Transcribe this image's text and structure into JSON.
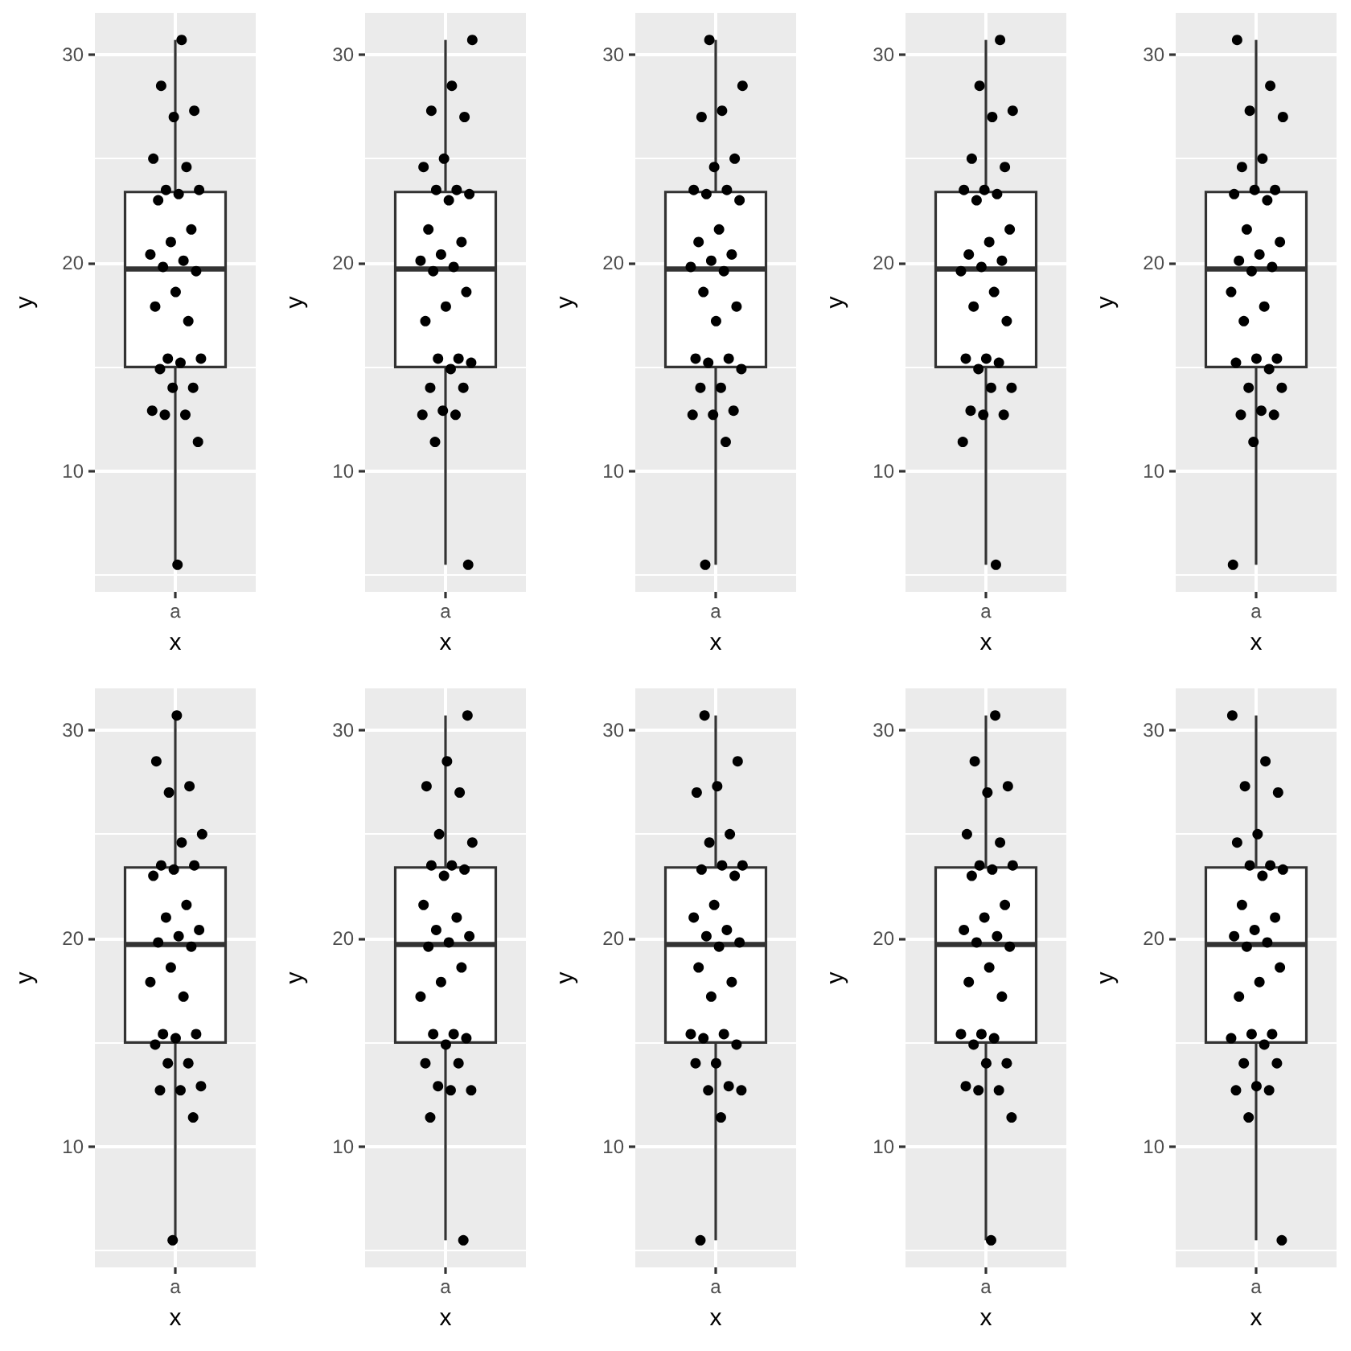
{
  "chart_data": [
    {
      "type": "box",
      "xlabel": "x",
      "ylabel": "y",
      "categories": [
        "a"
      ],
      "ylim": [
        4.2,
        32.0
      ],
      "yticks": [
        {
          "value": 5,
          "label": null
        },
        10,
        {
          "value": 15,
          "label": null
        },
        20,
        {
          "value": 25,
          "label": null
        },
        30
      ],
      "grid": true,
      "marker": "circle",
      "series": [
        {
          "type": "box",
          "color": "#333333",
          "boxes": [
            {
              "low": 5.5,
              "q1": 15.0,
              "median": 19.7,
              "q3": 23.4,
              "high": 30.7
            }
          ]
        },
        {
          "type": "scatter",
          "color": "#000000",
          "x": [
            "a",
            "a",
            "a",
            "a",
            "a",
            "a",
            "a",
            "a",
            "a",
            "a",
            "a",
            "a",
            "a",
            "a",
            "a",
            "a",
            "a",
            "a",
            "a",
            "a",
            "a",
            "a",
            "a",
            "a",
            "a",
            "a",
            "a",
            "a",
            "a",
            "a"
          ],
          "values": [
            30.7,
            28.5,
            27.3,
            27.0,
            25.0,
            24.6,
            23.5,
            23.5,
            23.3,
            23.0,
            21.6,
            21.0,
            20.4,
            20.1,
            19.8,
            19.6,
            18.6,
            17.9,
            17.2,
            15.4,
            15.4,
            15.2,
            14.9,
            14.0,
            14.0,
            12.9,
            12.7,
            12.7,
            11.4,
            5.5
          ]
        }
      ]
    },
    {
      "type": "box",
      "xlabel": "x",
      "ylabel": "y",
      "categories": [
        "a"
      ],
      "ylim": [
        4.2,
        32.0
      ],
      "yticks": [
        {
          "value": 5,
          "label": null
        },
        10,
        {
          "value": 15,
          "label": null
        },
        20,
        {
          "value": 25,
          "label": null
        },
        30
      ],
      "grid": true,
      "marker": "circle",
      "series": [
        {
          "type": "box",
          "color": "#333333",
          "boxes": [
            {
              "low": 5.5,
              "q1": 15.0,
              "median": 19.7,
              "q3": 23.4,
              "high": 30.7
            }
          ]
        },
        {
          "type": "scatter",
          "color": "#000000",
          "x": [
            "a",
            "a",
            "a",
            "a",
            "a",
            "a",
            "a",
            "a",
            "a",
            "a",
            "a",
            "a",
            "a",
            "a",
            "a",
            "a",
            "a",
            "a",
            "a",
            "a",
            "a",
            "a",
            "a",
            "a",
            "a",
            "a",
            "a",
            "a",
            "a",
            "a"
          ],
          "values": [
            30.7,
            28.5,
            27.3,
            27.0,
            25.0,
            24.6,
            23.5,
            23.5,
            23.3,
            23.0,
            21.6,
            21.0,
            20.4,
            20.1,
            19.8,
            19.6,
            18.6,
            17.9,
            17.2,
            15.4,
            15.4,
            15.2,
            14.9,
            14.0,
            14.0,
            12.9,
            12.7,
            12.7,
            11.4,
            5.5
          ]
        }
      ]
    },
    {
      "type": "box",
      "xlabel": "x",
      "ylabel": "y",
      "categories": [
        "a"
      ],
      "ylim": [
        4.2,
        32.0
      ],
      "yticks": [
        {
          "value": 5,
          "label": null
        },
        10,
        {
          "value": 15,
          "label": null
        },
        20,
        {
          "value": 25,
          "label": null
        },
        30
      ],
      "grid": true,
      "marker": "circle",
      "series": [
        {
          "type": "box",
          "color": "#333333",
          "boxes": [
            {
              "low": 5.5,
              "q1": 15.0,
              "median": 19.7,
              "q3": 23.4,
              "high": 30.7
            }
          ]
        },
        {
          "type": "scatter",
          "color": "#000000",
          "x": [
            "a",
            "a",
            "a",
            "a",
            "a",
            "a",
            "a",
            "a",
            "a",
            "a",
            "a",
            "a",
            "a",
            "a",
            "a",
            "a",
            "a",
            "a",
            "a",
            "a",
            "a",
            "a",
            "a",
            "a",
            "a",
            "a",
            "a",
            "a",
            "a",
            "a"
          ],
          "values": [
            30.7,
            28.5,
            27.3,
            27.0,
            25.0,
            24.6,
            23.5,
            23.5,
            23.3,
            23.0,
            21.6,
            21.0,
            20.4,
            20.1,
            19.8,
            19.6,
            18.6,
            17.9,
            17.2,
            15.4,
            15.4,
            15.2,
            14.9,
            14.0,
            14.0,
            12.9,
            12.7,
            12.7,
            11.4,
            5.5
          ]
        }
      ]
    },
    {
      "type": "box",
      "xlabel": "x",
      "ylabel": "y",
      "categories": [
        "a"
      ],
      "ylim": [
        4.2,
        32.0
      ],
      "yticks": [
        {
          "value": 5,
          "label": null
        },
        10,
        {
          "value": 15,
          "label": null
        },
        20,
        {
          "value": 25,
          "label": null
        },
        30
      ],
      "grid": true,
      "marker": "circle",
      "series": [
        {
          "type": "box",
          "color": "#333333",
          "boxes": [
            {
              "low": 5.5,
              "q1": 15.0,
              "median": 19.7,
              "q3": 23.4,
              "high": 30.7
            }
          ]
        },
        {
          "type": "scatter",
          "color": "#000000",
          "x": [
            "a",
            "a",
            "a",
            "a",
            "a",
            "a",
            "a",
            "a",
            "a",
            "a",
            "a",
            "a",
            "a",
            "a",
            "a",
            "a",
            "a",
            "a",
            "a",
            "a",
            "a",
            "a",
            "a",
            "a",
            "a",
            "a",
            "a",
            "a",
            "a",
            "a"
          ],
          "values": [
            30.7,
            28.5,
            27.3,
            27.0,
            25.0,
            24.6,
            23.5,
            23.5,
            23.3,
            23.0,
            21.6,
            21.0,
            20.4,
            20.1,
            19.8,
            19.6,
            18.6,
            17.9,
            17.2,
            15.4,
            15.4,
            15.2,
            14.9,
            14.0,
            14.0,
            12.9,
            12.7,
            12.7,
            11.4,
            5.5
          ]
        }
      ]
    },
    {
      "type": "box",
      "xlabel": "x",
      "ylabel": "y",
      "categories": [
        "a"
      ],
      "ylim": [
        4.2,
        32.0
      ],
      "yticks": [
        {
          "value": 5,
          "label": null
        },
        10,
        {
          "value": 15,
          "label": null
        },
        20,
        {
          "value": 25,
          "label": null
        },
        30
      ],
      "grid": true,
      "marker": "circle",
      "series": [
        {
          "type": "box",
          "color": "#333333",
          "boxes": [
            {
              "low": 5.5,
              "q1": 15.0,
              "median": 19.7,
              "q3": 23.4,
              "high": 30.7
            }
          ]
        },
        {
          "type": "scatter",
          "color": "#000000",
          "x": [
            "a",
            "a",
            "a",
            "a",
            "a",
            "a",
            "a",
            "a",
            "a",
            "a",
            "a",
            "a",
            "a",
            "a",
            "a",
            "a",
            "a",
            "a",
            "a",
            "a",
            "a",
            "a",
            "a",
            "a",
            "a",
            "a",
            "a",
            "a",
            "a",
            "a"
          ],
          "values": [
            30.7,
            28.5,
            27.3,
            27.0,
            25.0,
            24.6,
            23.5,
            23.5,
            23.3,
            23.0,
            21.6,
            21.0,
            20.4,
            20.1,
            19.8,
            19.6,
            18.6,
            17.9,
            17.2,
            15.4,
            15.4,
            15.2,
            14.9,
            14.0,
            14.0,
            12.9,
            12.7,
            12.7,
            11.4,
            5.5
          ]
        }
      ]
    },
    {
      "type": "box",
      "xlabel": "x",
      "ylabel": "y",
      "categories": [
        "a"
      ],
      "ylim": [
        4.2,
        32.0
      ],
      "yticks": [
        {
          "value": 5,
          "label": null
        },
        10,
        {
          "value": 15,
          "label": null
        },
        20,
        {
          "value": 25,
          "label": null
        },
        30
      ],
      "grid": true,
      "marker": "circle",
      "series": [
        {
          "type": "box",
          "color": "#333333",
          "boxes": [
            {
              "low": 5.5,
              "q1": 15.0,
              "median": 19.7,
              "q3": 23.4,
              "high": 30.7
            }
          ]
        },
        {
          "type": "scatter",
          "color": "#000000",
          "x": [
            "a",
            "a",
            "a",
            "a",
            "a",
            "a",
            "a",
            "a",
            "a",
            "a",
            "a",
            "a",
            "a",
            "a",
            "a",
            "a",
            "a",
            "a",
            "a",
            "a",
            "a",
            "a",
            "a",
            "a",
            "a",
            "a",
            "a",
            "a",
            "a",
            "a"
          ],
          "values": [
            30.7,
            28.5,
            27.3,
            27.0,
            25.0,
            24.6,
            23.5,
            23.5,
            23.3,
            23.0,
            21.6,
            21.0,
            20.4,
            20.1,
            19.8,
            19.6,
            18.6,
            17.9,
            17.2,
            15.4,
            15.4,
            15.2,
            14.9,
            14.0,
            14.0,
            12.9,
            12.7,
            12.7,
            11.4,
            5.5
          ]
        }
      ]
    },
    {
      "type": "box",
      "xlabel": "x",
      "ylabel": "y",
      "categories": [
        "a"
      ],
      "ylim": [
        4.2,
        32.0
      ],
      "yticks": [
        {
          "value": 5,
          "label": null
        },
        10,
        {
          "value": 15,
          "label": null
        },
        20,
        {
          "value": 25,
          "label": null
        },
        30
      ],
      "grid": true,
      "marker": "circle",
      "series": [
        {
          "type": "box",
          "color": "#333333",
          "boxes": [
            {
              "low": 5.5,
              "q1": 15.0,
              "median": 19.7,
              "q3": 23.4,
              "high": 30.7
            }
          ]
        },
        {
          "type": "scatter",
          "color": "#000000",
          "x": [
            "a",
            "a",
            "a",
            "a",
            "a",
            "a",
            "a",
            "a",
            "a",
            "a",
            "a",
            "a",
            "a",
            "a",
            "a",
            "a",
            "a",
            "a",
            "a",
            "a",
            "a",
            "a",
            "a",
            "a",
            "a",
            "a",
            "a",
            "a",
            "a",
            "a"
          ],
          "values": [
            30.7,
            28.5,
            27.3,
            27.0,
            25.0,
            24.6,
            23.5,
            23.5,
            23.3,
            23.0,
            21.6,
            21.0,
            20.4,
            20.1,
            19.8,
            19.6,
            18.6,
            17.9,
            17.2,
            15.4,
            15.4,
            15.2,
            14.9,
            14.0,
            14.0,
            12.9,
            12.7,
            12.7,
            11.4,
            5.5
          ]
        }
      ]
    },
    {
      "type": "box",
      "xlabel": "x",
      "ylabel": "y",
      "categories": [
        "a"
      ],
      "ylim": [
        4.2,
        32.0
      ],
      "yticks": [
        {
          "value": 5,
          "label": null
        },
        10,
        {
          "value": 15,
          "label": null
        },
        20,
        {
          "value": 25,
          "label": null
        },
        30
      ],
      "grid": true,
      "marker": "circle",
      "series": [
        {
          "type": "box",
          "color": "#333333",
          "boxes": [
            {
              "low": 5.5,
              "q1": 15.0,
              "median": 19.7,
              "q3": 23.4,
              "high": 30.7
            }
          ]
        },
        {
          "type": "scatter",
          "color": "#000000",
          "x": [
            "a",
            "a",
            "a",
            "a",
            "a",
            "a",
            "a",
            "a",
            "a",
            "a",
            "a",
            "a",
            "a",
            "a",
            "a",
            "a",
            "a",
            "a",
            "a",
            "a",
            "a",
            "a",
            "a",
            "a",
            "a",
            "a",
            "a",
            "a",
            "a",
            "a"
          ],
          "values": [
            30.7,
            28.5,
            27.3,
            27.0,
            25.0,
            24.6,
            23.5,
            23.5,
            23.3,
            23.0,
            21.6,
            21.0,
            20.4,
            20.1,
            19.8,
            19.6,
            18.6,
            17.9,
            17.2,
            15.4,
            15.4,
            15.2,
            14.9,
            14.0,
            14.0,
            12.9,
            12.7,
            12.7,
            11.4,
            5.5
          ]
        }
      ]
    },
    {
      "type": "box",
      "xlabel": "x",
      "ylabel": "y",
      "categories": [
        "a"
      ],
      "ylim": [
        4.2,
        32.0
      ],
      "yticks": [
        {
          "value": 5,
          "label": null
        },
        10,
        {
          "value": 15,
          "label": null
        },
        20,
        {
          "value": 25,
          "label": null
        },
        30
      ],
      "grid": true,
      "marker": "circle",
      "series": [
        {
          "type": "box",
          "color": "#333333",
          "boxes": [
            {
              "low": 5.5,
              "q1": 15.0,
              "median": 19.7,
              "q3": 23.4,
              "high": 30.7
            }
          ]
        },
        {
          "type": "scatter",
          "color": "#000000",
          "x": [
            "a",
            "a",
            "a",
            "a",
            "a",
            "a",
            "a",
            "a",
            "a",
            "a",
            "a",
            "a",
            "a",
            "a",
            "a",
            "a",
            "a",
            "a",
            "a",
            "a",
            "a",
            "a",
            "a",
            "a",
            "a",
            "a",
            "a",
            "a",
            "a",
            "a"
          ],
          "values": [
            30.7,
            28.5,
            27.3,
            27.0,
            25.0,
            24.6,
            23.5,
            23.5,
            23.3,
            23.0,
            21.6,
            21.0,
            20.4,
            20.1,
            19.8,
            19.6,
            18.6,
            17.9,
            17.2,
            15.4,
            15.4,
            15.2,
            14.9,
            14.0,
            14.0,
            12.9,
            12.7,
            12.7,
            11.4,
            5.5
          ]
        }
      ]
    },
    {
      "type": "box",
      "xlabel": "x",
      "ylabel": "y",
      "categories": [
        "a"
      ],
      "ylim": [
        4.2,
        32.0
      ],
      "yticks": [
        {
          "value": 5,
          "label": null
        },
        10,
        {
          "value": 15,
          "label": null
        },
        20,
        {
          "value": 25,
          "label": null
        },
        30
      ],
      "grid": true,
      "marker": "circle",
      "series": [
        {
          "type": "box",
          "color": "#333333",
          "boxes": [
            {
              "low": 5.5,
              "q1": 15.0,
              "median": 19.7,
              "q3": 23.4,
              "high": 30.7
            }
          ]
        },
        {
          "type": "scatter",
          "color": "#000000",
          "x": [
            "a",
            "a",
            "a",
            "a",
            "a",
            "a",
            "a",
            "a",
            "a",
            "a",
            "a",
            "a",
            "a",
            "a",
            "a",
            "a",
            "a",
            "a",
            "a",
            "a",
            "a",
            "a",
            "a",
            "a",
            "a",
            "a",
            "a",
            "a",
            "a",
            "a"
          ],
          "values": [
            30.7,
            28.5,
            27.3,
            27.0,
            25.0,
            24.6,
            23.5,
            23.5,
            23.3,
            23.0,
            21.6,
            21.0,
            20.4,
            20.1,
            19.8,
            19.6,
            18.6,
            17.9,
            17.2,
            15.4,
            15.4,
            15.2,
            14.9,
            14.0,
            14.0,
            12.9,
            12.7,
            12.7,
            11.4,
            5.5
          ]
        }
      ]
    }
  ]
}
